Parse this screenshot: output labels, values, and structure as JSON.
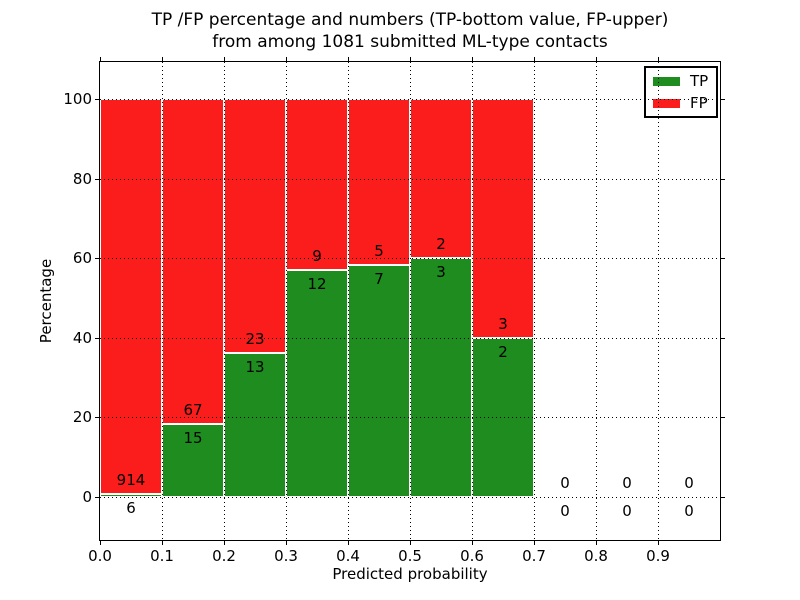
{
  "chart_data": {
    "type": "bar",
    "stacked": true,
    "title_lines": [
      "TP /FP percentage and numbers (TP-bottom value, FP-upper)",
      "from among 1081 submitted ML-type contacts"
    ],
    "xlabel": "Predicted probability",
    "ylabel": "Percentage",
    "xlim": [
      0.0,
      1.0
    ],
    "ylim": [
      -10.8,
      109.3
    ],
    "xtick_values": [
      0.0,
      0.1,
      0.2,
      0.3,
      0.4,
      0.5,
      0.6,
      0.7,
      0.8,
      0.9
    ],
    "xtick_labels": [
      "0.0",
      "0.1",
      "0.2",
      "0.3",
      "0.4",
      "0.5",
      "0.6",
      "0.7",
      "0.8",
      "0.9"
    ],
    "ytick_values": [
      0,
      20,
      40,
      60,
      80,
      100
    ],
    "ytick_labels": [
      "0",
      "20",
      "40",
      "60",
      "80",
      "100"
    ],
    "grid": "dotted, drawn above bars",
    "total_contacts": 1081,
    "bins": [
      {
        "x_start": 0.0,
        "x_end": 0.1,
        "tp_count": 6,
        "fp_count": 914,
        "tp_pct": 0.7,
        "fp_pct": 99.3
      },
      {
        "x_start": 0.1,
        "x_end": 0.2,
        "tp_count": 15,
        "fp_count": 67,
        "tp_pct": 18.3,
        "fp_pct": 81.7
      },
      {
        "x_start": 0.2,
        "x_end": 0.3,
        "tp_count": 13,
        "fp_count": 23,
        "tp_pct": 36.1,
        "fp_pct": 63.9
      },
      {
        "x_start": 0.3,
        "x_end": 0.4,
        "tp_count": 12,
        "fp_count": 9,
        "tp_pct": 57.1,
        "fp_pct": 42.9
      },
      {
        "x_start": 0.4,
        "x_end": 0.5,
        "tp_count": 7,
        "fp_count": 5,
        "tp_pct": 58.3,
        "fp_pct": 41.7
      },
      {
        "x_start": 0.5,
        "x_end": 0.6,
        "tp_count": 3,
        "fp_count": 2,
        "tp_pct": 60.0,
        "fp_pct": 40.0
      },
      {
        "x_start": 0.6,
        "x_end": 0.7,
        "tp_count": 2,
        "fp_count": 3,
        "tp_pct": 40.0,
        "fp_pct": 60.0
      },
      {
        "x_start": 0.7,
        "x_end": 0.8,
        "tp_count": 0,
        "fp_count": 0,
        "tp_pct": null,
        "fp_pct": null
      },
      {
        "x_start": 0.8,
        "x_end": 0.9,
        "tp_count": 0,
        "fp_count": 0,
        "tp_pct": null,
        "fp_pct": null
      },
      {
        "x_start": 0.9,
        "x_end": 1.0,
        "tp_count": 0,
        "fp_count": 0,
        "tp_pct": null,
        "fp_pct": null
      }
    ],
    "legend": {
      "position": "upper right",
      "entries": [
        {
          "label": "TP",
          "color": "#1e8c1e"
        },
        {
          "label": "FP",
          "color": "#fb1c1c"
        }
      ]
    },
    "colors": {
      "tp": "#1e8c1e",
      "fp": "#fb1c1c",
      "bar_edge": "#ffffff",
      "grid": "#000000",
      "text": "#000000",
      "background": "#ffffff"
    }
  }
}
